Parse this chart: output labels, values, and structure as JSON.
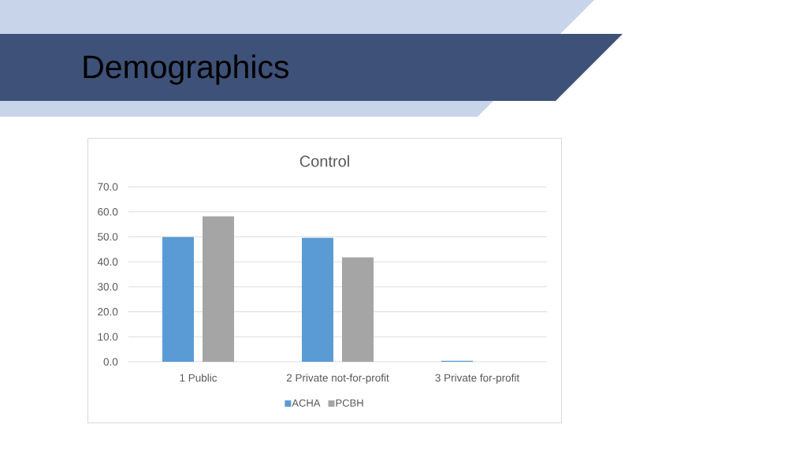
{
  "chart_data": {
    "type": "bar",
    "title": "Demographics",
    "subtitle": "Control",
    "categories": [
      "1 Public",
      "2 Private not-for-profit",
      "3 Private for-profit"
    ],
    "series": [
      {
        "name": "ACHA",
        "color": "#5b9bd5",
        "values": [
          49.9,
          49.6,
          0.4
        ]
      },
      {
        "name": "PCBH",
        "color": "#a5a5a5",
        "values": [
          58.2,
          41.8,
          0
        ]
      }
    ],
    "ylim": [
      0,
      70
    ],
    "yticks": [
      {
        "value": 0,
        "label": "0.0"
      },
      {
        "value": 10,
        "label": "10.0"
      },
      {
        "value": 20,
        "label": "20.0"
      },
      {
        "value": 30,
        "label": "30.0"
      },
      {
        "value": 40,
        "label": "40.0"
      },
      {
        "value": 50,
        "label": "50.0"
      },
      {
        "value": 60,
        "label": "60.0"
      },
      {
        "value": 70,
        "label": "70.0"
      }
    ],
    "grid": "y",
    "legend": "bottom"
  }
}
